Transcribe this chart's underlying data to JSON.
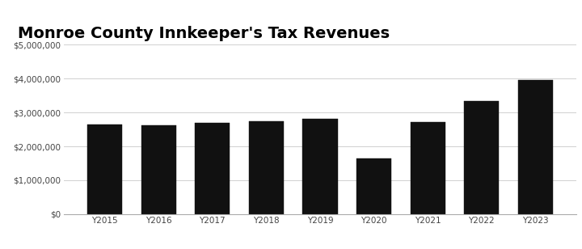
{
  "title": "Monroe County Innkeeper's Tax Revenues",
  "categories": [
    "Y2015",
    "Y2016",
    "Y2017",
    "Y2018",
    "Y2019",
    "Y2020",
    "Y2021",
    "Y2022",
    "Y2023"
  ],
  "values": [
    2650000,
    2620000,
    2700000,
    2740000,
    2820000,
    1650000,
    2730000,
    3350000,
    3950000
  ],
  "bar_color": "#111111",
  "background_color": "#ffffff",
  "ylim": [
    0,
    5000000
  ],
  "yticks": [
    0,
    1000000,
    2000000,
    3000000,
    4000000,
    5000000
  ],
  "ytick_labels": [
    "$0",
    "$1,000,000",
    "$2,000,000",
    "$3,000,000",
    "$4,000,000",
    "$5,000,000"
  ],
  "title_fontsize": 14,
  "tick_fontsize": 7.5,
  "bar_width": 0.65,
  "grid_color": "#d0d0d0",
  "edge_color": "#111111"
}
